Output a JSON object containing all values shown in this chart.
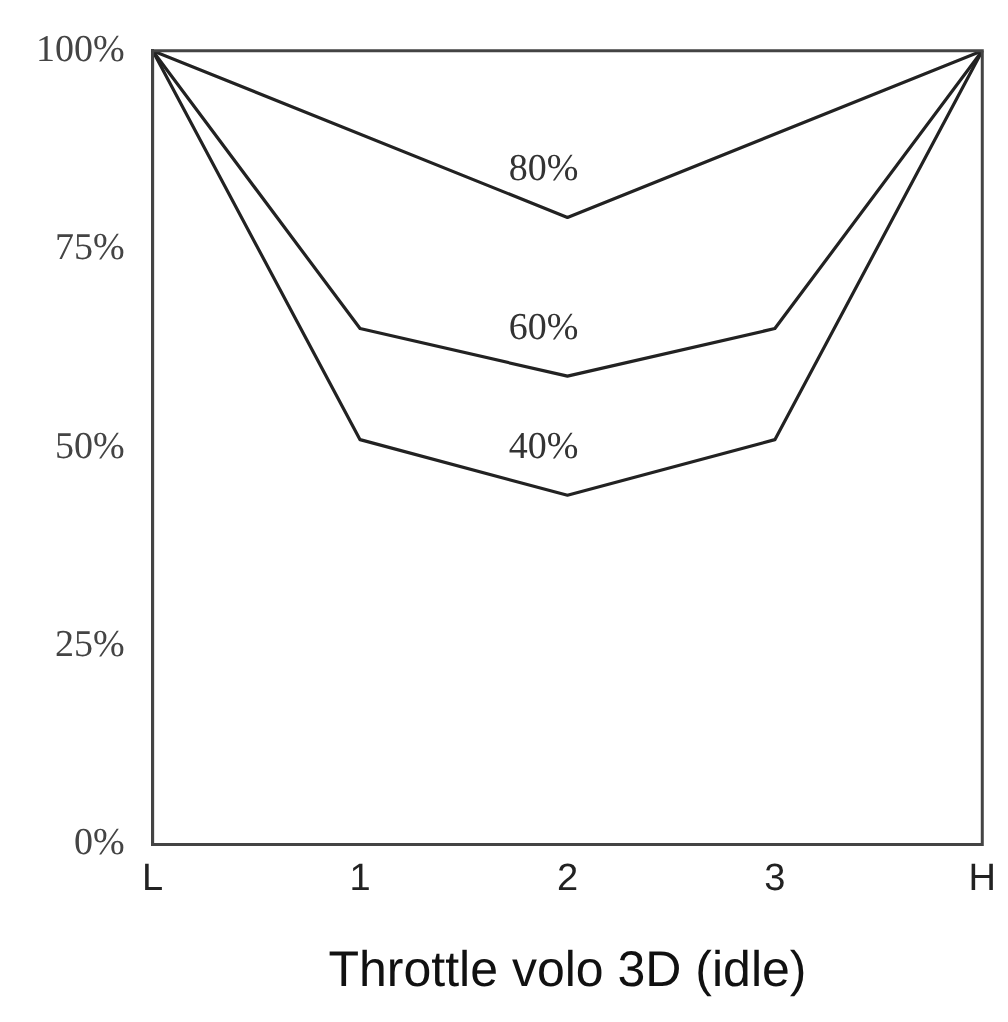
{
  "chart_data": {
    "type": "line",
    "xlabel": "Throttle volo 3D (idle)",
    "categories": [
      "L",
      "1",
      "2",
      "3",
      "H"
    ],
    "series": [
      {
        "name": "80%",
        "color": "#222222",
        "values": [
          100,
          null,
          79,
          null,
          100
        ]
      },
      {
        "name": "60%",
        "color": "#222222",
        "values": [
          100,
          65,
          59,
          65,
          100
        ]
      },
      {
        "name": "40%",
        "color": "#222222",
        "values": [
          100,
          51,
          44,
          51,
          100
        ]
      }
    ],
    "ylim": [
      0,
      100
    ],
    "yticks": [
      {
        "value": 0,
        "label": "0%"
      },
      {
        "value": 25,
        "label": "25%"
      },
      {
        "value": 50,
        "label": "50%"
      },
      {
        "value": 75,
        "label": "75%"
      },
      {
        "value": 100,
        "label": "100%"
      }
    ],
    "grid": false,
    "legend": false,
    "marker": "none",
    "line_style": "solid"
  }
}
